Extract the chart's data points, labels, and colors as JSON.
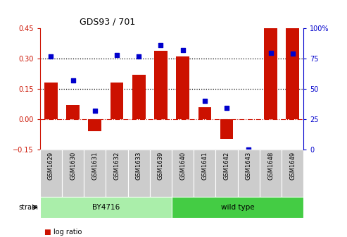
{
  "title": "GDS93 / 701",
  "samples": [
    "GSM1629",
    "GSM1630",
    "GSM1631",
    "GSM1632",
    "GSM1633",
    "GSM1639",
    "GSM1640",
    "GSM1641",
    "GSM1642",
    "GSM1643",
    "GSM1648",
    "GSM1649"
  ],
  "log_ratio": [
    0.18,
    0.07,
    -0.06,
    0.18,
    0.22,
    0.34,
    0.31,
    0.06,
    -0.1,
    0.0,
    0.45,
    0.45
  ],
  "percentile": [
    77,
    57,
    32,
    78,
    77,
    86,
    82,
    40,
    34,
    0,
    80,
    79
  ],
  "strain_groups": [
    {
      "label": "BY4716",
      "start": 0,
      "end": 6,
      "color": "#aaeeaa"
    },
    {
      "label": "wild type",
      "start": 6,
      "end": 12,
      "color": "#44cc44"
    }
  ],
  "bar_color": "#cc1100",
  "dot_color": "#0000cc",
  "ylim_left": [
    -0.15,
    0.45
  ],
  "ylim_right": [
    0,
    100
  ],
  "yticks_left": [
    -0.15,
    0.0,
    0.15,
    0.3,
    0.45
  ],
  "yticks_right": [
    0,
    25,
    50,
    75,
    100
  ],
  "hlines": [
    0.15,
    0.3
  ],
  "zero_line": 0.0,
  "label_bg": "#cccccc",
  "plot_bg": "#ffffff"
}
